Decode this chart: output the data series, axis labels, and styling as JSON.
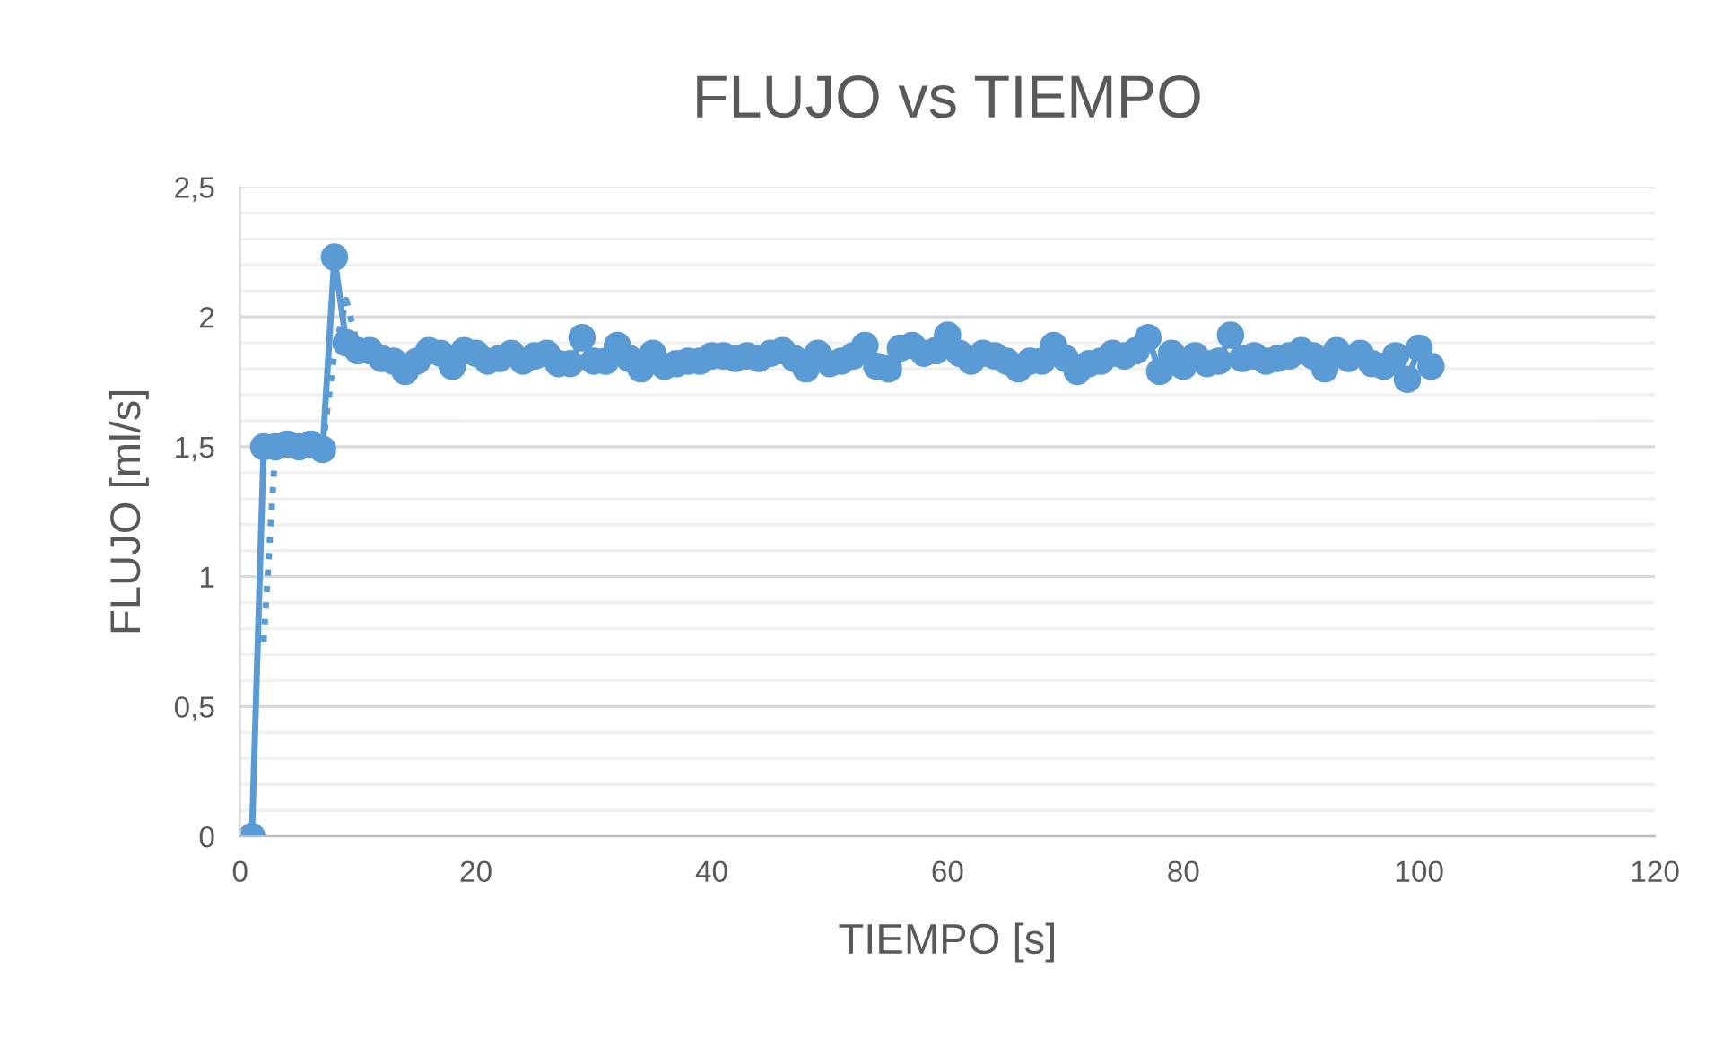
{
  "chart_data": {
    "type": "line",
    "title": "FLUJO vs TIEMPO",
    "xlabel": "TIEMPO [s]",
    "ylabel": "FLUJO [ml/s]",
    "xlim": [
      0,
      120
    ],
    "xticks": [
      0,
      20,
      40,
      60,
      80,
      100,
      120
    ],
    "ylim": [
      0,
      2.5
    ],
    "yticks": [
      {
        "value": 0,
        "label": "0"
      },
      {
        "value": 0.5,
        "label": "0,5"
      },
      {
        "value": 1,
        "label": "1"
      },
      {
        "value": 1.5,
        "label": "1,5"
      },
      {
        "value": 2,
        "label": "2"
      },
      {
        "value": 2.5,
        "label": "2,5"
      }
    ],
    "grid": "y",
    "series": [
      {
        "color": "#5b9bd5",
        "marker": "circle",
        "line_style": "solid",
        "x": [
          1,
          2,
          3,
          4,
          5,
          6,
          7,
          8,
          9,
          10,
          11,
          12,
          13,
          14,
          15,
          16,
          17,
          18,
          19,
          20,
          21,
          22,
          23,
          24,
          25,
          26,
          27,
          28,
          29,
          30,
          31,
          32,
          33,
          34,
          35,
          36,
          37,
          38,
          39,
          40,
          41,
          42,
          43,
          44,
          45,
          46,
          47,
          48,
          49,
          50,
          51,
          52,
          53,
          54,
          55,
          56,
          57,
          58,
          59,
          60,
          61,
          62,
          63,
          64,
          65,
          66,
          67,
          68,
          69,
          70,
          71,
          72,
          73,
          74,
          75,
          76,
          77,
          78,
          79,
          80,
          81,
          82,
          83,
          84,
          85,
          86,
          87,
          88,
          89,
          90,
          91,
          92,
          93,
          94,
          95,
          96,
          97,
          98,
          99,
          100,
          101
        ],
        "values": [
          0,
          1.5,
          1.5,
          1.51,
          1.5,
          1.51,
          1.49,
          2.23,
          1.9,
          1.87,
          1.87,
          1.84,
          1.83,
          1.79,
          1.83,
          1.87,
          1.86,
          1.81,
          1.87,
          1.86,
          1.83,
          1.84,
          1.86,
          1.83,
          1.85,
          1.86,
          1.82,
          1.82,
          1.92,
          1.83,
          1.83,
          1.89,
          1.84,
          1.8,
          1.86,
          1.81,
          1.82,
          1.83,
          1.83,
          1.85,
          1.85,
          1.84,
          1.85,
          1.84,
          1.86,
          1.87,
          1.84,
          1.8,
          1.86,
          1.82,
          1.83,
          1.85,
          1.89,
          1.81,
          1.8,
          1.88,
          1.89,
          1.86,
          1.87,
          1.93,
          1.86,
          1.83,
          1.86,
          1.85,
          1.83,
          1.8,
          1.83,
          1.83,
          1.89,
          1.84,
          1.79,
          1.82,
          1.83,
          1.86,
          1.85,
          1.87,
          1.92,
          1.79,
          1.86,
          1.81,
          1.85,
          1.82,
          1.83,
          1.93,
          1.84,
          1.85,
          1.83,
          1.84,
          1.85,
          1.87,
          1.85,
          1.8,
          1.87,
          1.84,
          1.86,
          1.82,
          1.81,
          1.85,
          1.76,
          1.88,
          1.81
        ]
      },
      {
        "color": "#5b9bd5",
        "marker": "none",
        "line_style": "dotted",
        "x": [
          2,
          3,
          4,
          5,
          6,
          7,
          8,
          9,
          10
        ],
        "values": [
          0.75,
          1.5,
          null,
          null,
          null,
          1.5,
          1.86,
          2.065,
          1.885
        ]
      }
    ]
  }
}
